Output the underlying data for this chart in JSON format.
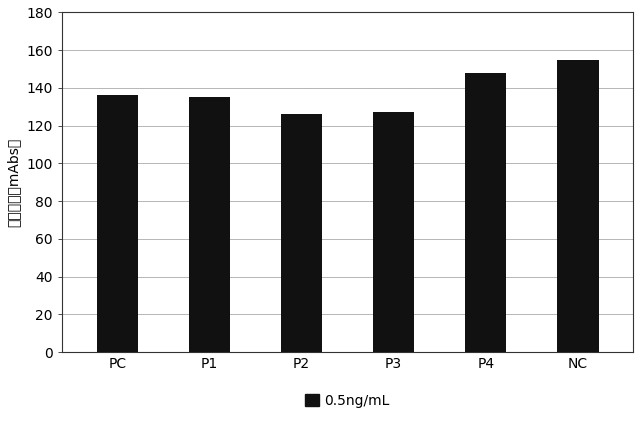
{
  "categories": [
    "PC",
    "P1",
    "P2",
    "P3",
    "P4",
    "NC"
  ],
  "values": [
    136,
    135,
    126,
    127,
    148,
    155
  ],
  "bar_color": "#111111",
  "ylabel": "発色強度（mAbs）",
  "ylim": [
    0,
    180
  ],
  "yticks": [
    0,
    20,
    40,
    60,
    80,
    100,
    120,
    140,
    160,
    180
  ],
  "legend_label": "0.5ng/mL",
  "legend_color": "#111111",
  "background_color": "#ffffff",
  "grid_color_solid": "#888888",
  "grid_color_dot": "#aaaaaa",
  "bar_width": 0.45,
  "ylabel_fontsize": 10,
  "tick_fontsize": 10,
  "legend_fontsize": 10
}
